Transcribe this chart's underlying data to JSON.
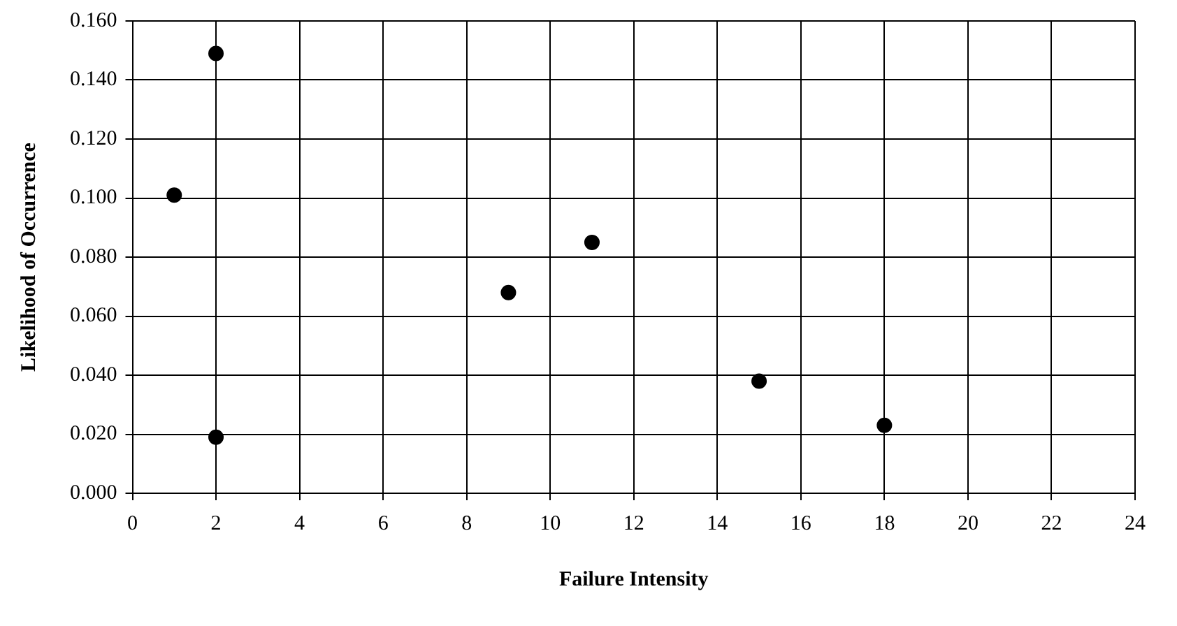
{
  "chart_data": {
    "type": "scatter",
    "xlabel": "Failure Intensity",
    "ylabel": "Likelihood of Occurrence",
    "x": [
      1,
      2,
      2,
      9,
      11,
      15,
      18
    ],
    "series": [
      {
        "color": "#000000",
        "values": [
          0.101,
          0.149,
          0.019,
          0.068,
          0.085,
          0.038,
          0.023
        ]
      }
    ],
    "xlim": [
      0,
      24
    ],
    "xticks": [
      0,
      2,
      4,
      6,
      8,
      10,
      12,
      14,
      16,
      18,
      20,
      22,
      24
    ],
    "ylim": [
      0,
      0.16
    ],
    "yticks": [
      {
        "value": 0,
        "label": "0.000"
      },
      {
        "value": 0.02,
        "label": "0.020"
      },
      {
        "value": 0.04,
        "label": "0.040"
      },
      {
        "value": 0.06,
        "label": "0.060"
      },
      {
        "value": 0.08,
        "label": "0.080"
      },
      {
        "value": 0.1,
        "label": "0.100"
      },
      {
        "value": 0.12,
        "label": "0.120"
      },
      {
        "value": 0.14,
        "label": "0.140"
      },
      {
        "value": 0.16,
        "label": "0.160"
      }
    ],
    "grid": true,
    "marker": "circle",
    "legend": false
  }
}
